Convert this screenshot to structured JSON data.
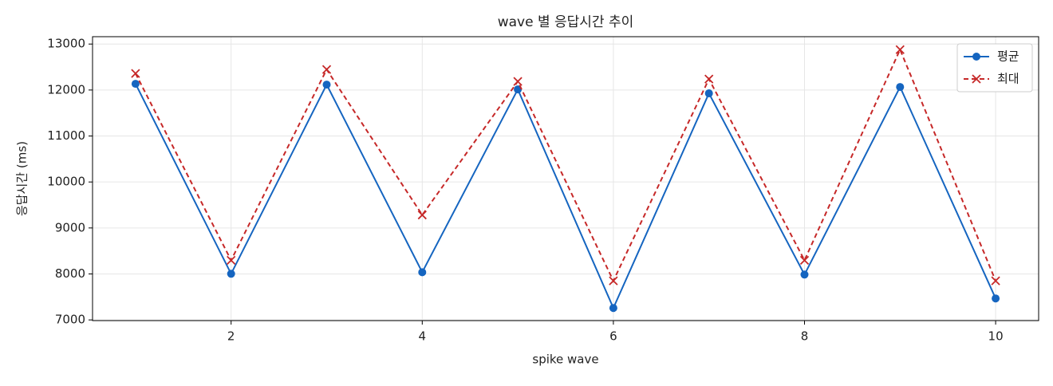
{
  "chart_data": {
    "type": "line",
    "title": "wave 별 응답시간 추이",
    "x_label": "spike wave",
    "y_label": "응답시간 (ms)",
    "x": [
      1,
      2,
      3,
      4,
      5,
      6,
      7,
      8,
      9,
      10
    ],
    "series": [
      {
        "name": "평균",
        "color": "#1565c0",
        "marker": "o",
        "dash": false,
        "values": [
          12135,
          8003,
          12118,
          8037,
          12014,
          7259,
          11928,
          7986,
          12066,
          7467
        ]
      },
      {
        "name": "최대",
        "color": "#c62828",
        "marker": "x",
        "dash": true,
        "values": [
          12360,
          8297,
          12447,
          9282,
          12187,
          7850,
          12239,
          8297,
          12879,
          7850
        ]
      }
    ],
    "xlim": [
      0.55,
      10.45
    ],
    "xticks": [
      2,
      4,
      6,
      8,
      10
    ],
    "ylim": [
      6985,
      13160
    ],
    "yticks": [
      7000,
      8000,
      9000,
      10000,
      11000,
      12000,
      13000
    ],
    "grid": true,
    "legend": "upper right"
  }
}
